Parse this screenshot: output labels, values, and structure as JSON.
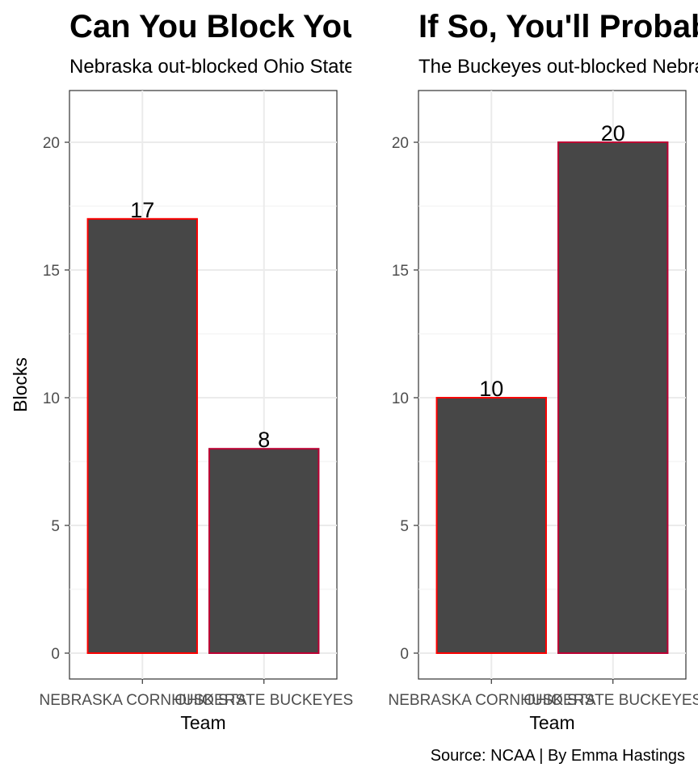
{
  "chart_data": [
    {
      "type": "bar",
      "title": "Can You Block Your Opponent?",
      "subtitle": "Nebraska out-blocked Ohio State",
      "xlabel": "Team",
      "ylabel": "Blocks",
      "categories": [
        "NEBRASKA CORNHUSKERS",
        "OHIO STATE BUCKEYES"
      ],
      "values": [
        17,
        8
      ],
      "ylim": [
        0,
        21
      ],
      "yticks": [
        0,
        5,
        10,
        15,
        20
      ],
      "bar_fill": "#474747",
      "bar_outlines": [
        "#ff0000",
        "#bb0033"
      ],
      "grid": true
    },
    {
      "type": "bar",
      "title": "If So, You'll Probably Win",
      "subtitle": "The Buckeyes out-blocked Nebraska",
      "xlabel": "Team",
      "ylabel": "",
      "categories": [
        "NEBRASKA CORNHUSKERS",
        "OHIO STATE BUCKEYES"
      ],
      "values": [
        10,
        20
      ],
      "ylim": [
        0,
        21
      ],
      "yticks": [
        0,
        5,
        10,
        15,
        20
      ],
      "bar_fill": "#474747",
      "bar_outlines": [
        "#ff0000",
        "#bb0033"
      ],
      "grid": true
    }
  ],
  "caption": "Source: NCAA | By Emma Hastings"
}
